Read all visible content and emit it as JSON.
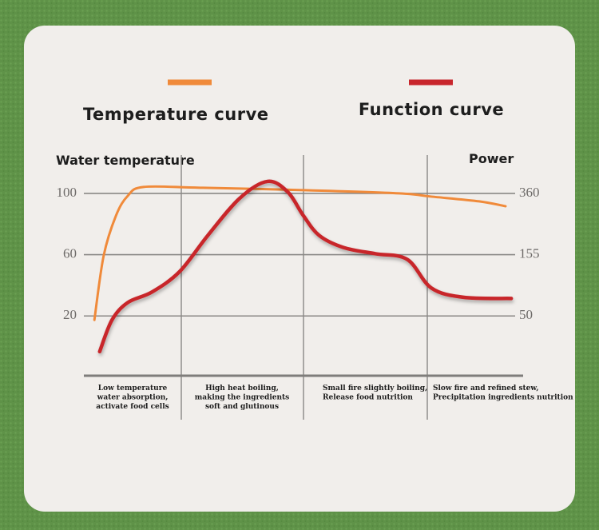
{
  "chart_data": {
    "type": "line",
    "y_label": "Water temperature",
    "y2_label": "Power",
    "xlim": [
      0,
      100
    ],
    "ylim": [
      -19,
      125
    ],
    "yticks": [
      100,
      60,
      20
    ],
    "y2lim": [
      -54,
      488
    ],
    "y2ticks": [
      360,
      155,
      50
    ],
    "grid": true,
    "phases": [
      [
        "Low temperature",
        "water absorption,",
        "activate food cells"
      ],
      [
        "High heat boiling,",
        "making the ingredients",
        "soft and glutinous"
      ],
      [
        "Small fire slightly boiling,",
        "Release food nutrition"
      ],
      [
        "Slow fire and refined stew,",
        "Precipitation ingredients nutrition"
      ]
    ],
    "series": [
      {
        "name": "Temperature curve",
        "color": "#f08a3a",
        "x": [
          2.4,
          4.5,
          7.3,
          10,
          13.6,
          26.4,
          50,
          71.8,
          79.1,
          90,
          96
        ],
        "values": [
          17.4,
          59.2,
          85.4,
          98.4,
          104.2,
          103.7,
          102.1,
          100,
          97.9,
          94.8,
          91.6
        ]
      },
      {
        "name": "Function curve",
        "color": "#c8262c",
        "axis": "y2",
        "x": [
          3.6,
          6.4,
          10,
          15.5,
          21.8,
          28.2,
          35.5,
          41.8,
          46.4,
          50,
          53.6,
          59.1,
          66.4,
          73.6,
          79.1,
          86.4,
          97.3
        ],
        "values": [
          -12,
          43,
          73,
          91,
          126,
          219,
          344,
          400,
          365,
          285,
          219,
          179,
          158,
          147,
          98,
          82,
          80
        ]
      }
    ]
  }
}
